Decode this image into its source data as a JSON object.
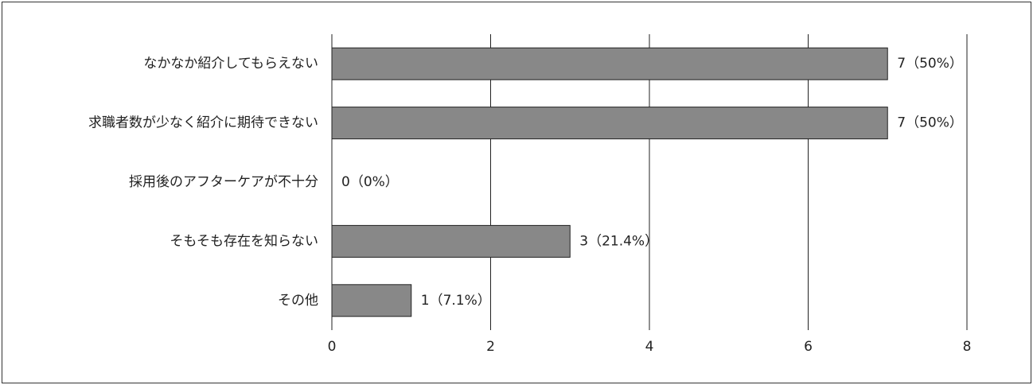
{
  "chart_data": {
    "type": "bar",
    "orientation": "horizontal",
    "categories": [
      "なかなか紹介してもらえない",
      "求職者数が少なく紹介に期待できない",
      "採用後のアフターケアが不十分",
      "そもそも存在を知らない",
      "その他"
    ],
    "values": [
      7,
      7,
      0,
      3,
      1
    ],
    "value_labels": [
      "7（50%）",
      "7（50%）",
      "0（0%）",
      "3（21.4%）",
      "1（7.1%）"
    ],
    "color": "#888888",
    "xlim": [
      0,
      8
    ],
    "xticks": [
      0,
      2,
      4,
      6,
      8
    ],
    "grid": true
  }
}
